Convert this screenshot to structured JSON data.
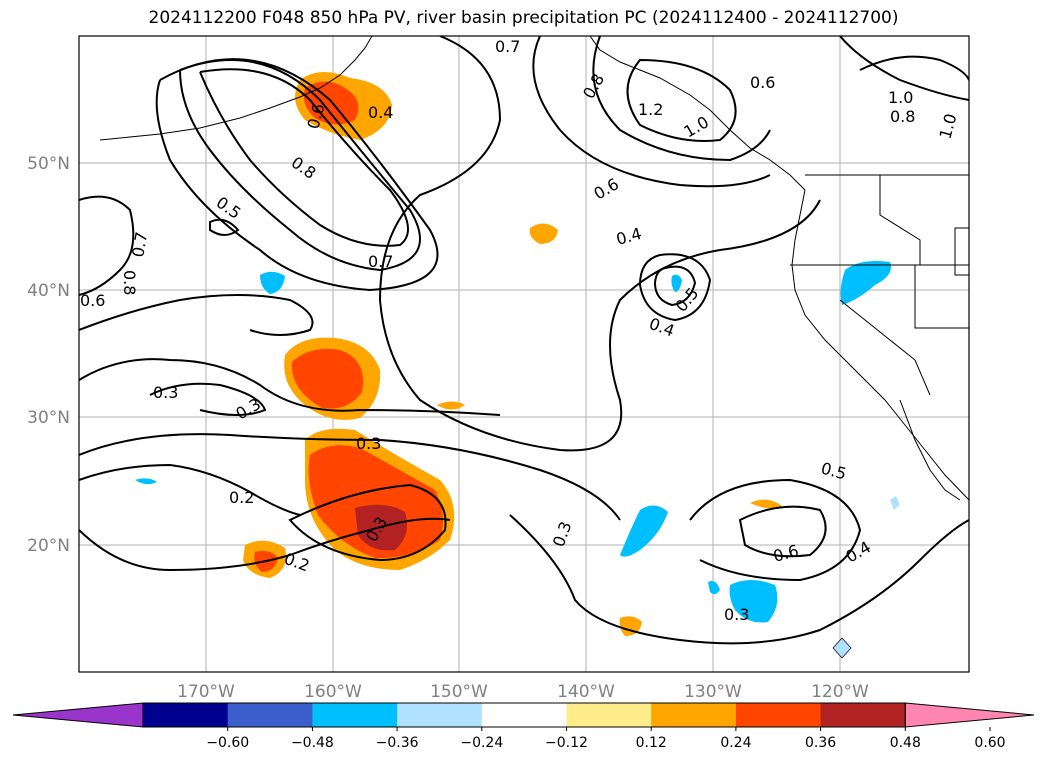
{
  "title": "2024112200 F048 850 hPa PV, river basin precipitation PC (2024112400 - 2024112700)",
  "axes": {
    "lon_ticks": [
      "170°W",
      "160°W",
      "150°W",
      "140°W",
      "130°W",
      "120°W"
    ],
    "lat_ticks": [
      "50°N",
      "40°N",
      "30°N",
      "20°N"
    ]
  },
  "contour_labels": [
    "0.7",
    "0.8",
    "0.6",
    "0.4",
    "0.6",
    "1.2",
    "1.0",
    "1.0",
    "0.8",
    "1.0",
    "0.8",
    "0.5",
    "0.7",
    "0.6",
    "0.7",
    "0.8",
    "0.6",
    "0.4",
    "0.5",
    "0.4",
    "0.3",
    "0.3",
    "0.3",
    "0.2",
    "0.3",
    "0.2",
    "0.3",
    "0.5",
    "0.6",
    "0.4",
    "0.3"
  ],
  "colorbar": {
    "colors": [
      "#9a35cc",
      "#00008f",
      "#3a5fcd",
      "#00bfff",
      "#b0e2ff",
      "#ffffff",
      "#ffec8b",
      "#ffa500",
      "#ff4500",
      "#b22222",
      "#ff86b0"
    ],
    "tick_labels": [
      "−0.60",
      "−0.48",
      "−0.36",
      "−0.24",
      "−0.12",
      "0.12",
      "0.24",
      "0.36",
      "0.48",
      "0.60"
    ]
  },
  "colors": {
    "gridline": "#b0b0b0",
    "contour": "#000000",
    "axis_label": "#808080"
  }
}
